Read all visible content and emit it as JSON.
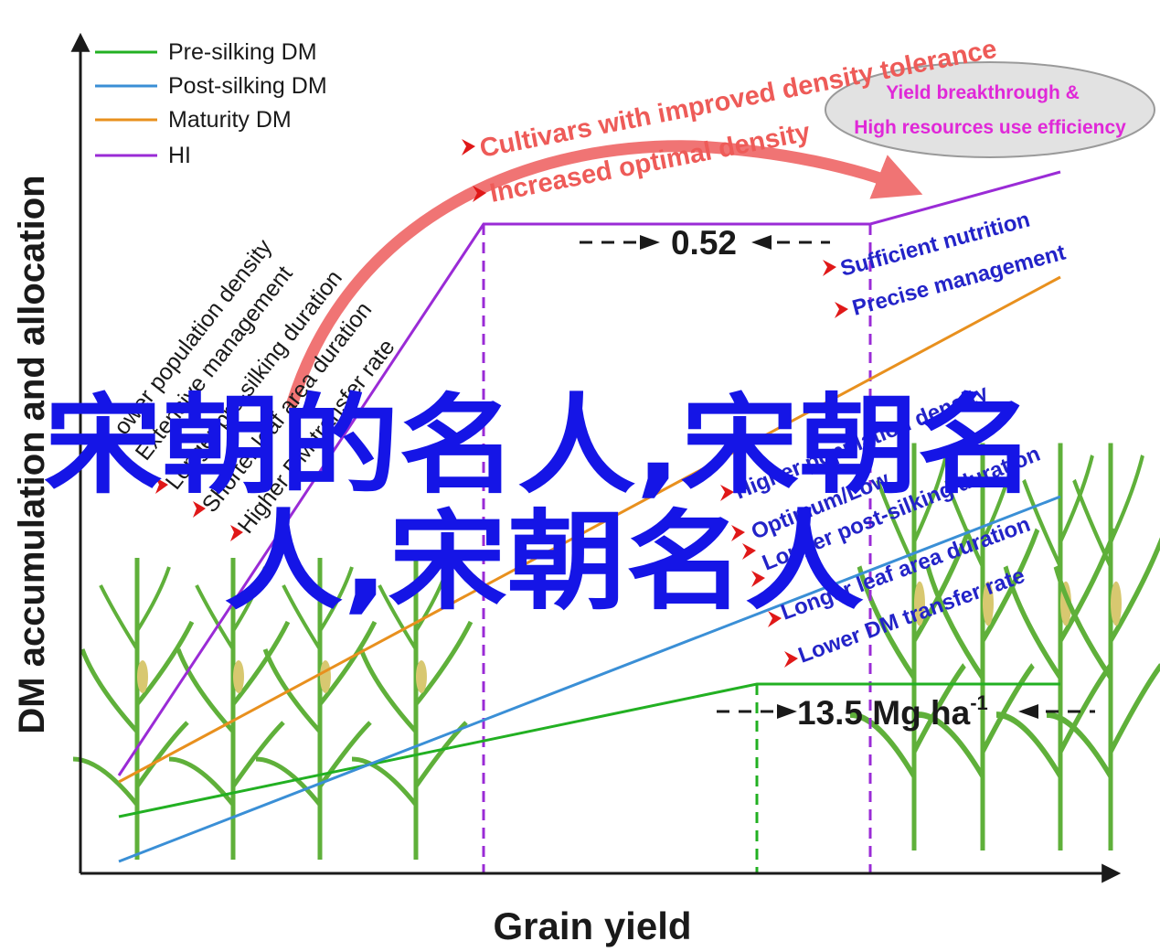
{
  "chart_data": {
    "type": "line",
    "xlabel": "Grain yield",
    "ylabel": "DM accumulation and allocation",
    "legend_position": "top-left",
    "series": [
      {
        "name": "Pre-silking DM",
        "color": "#22b022"
      },
      {
        "name": "Post-silking DM",
        "color": "#3a8fd6"
      },
      {
        "name": "Maturity DM",
        "color": "#e8901e"
      },
      {
        "name": "HI",
        "color": "#9a2bd6"
      }
    ],
    "value_labels": {
      "hi_plateau": "0.52",
      "yield_value": "13.5 Mg ha",
      "yield_unit_sup": "-1"
    },
    "low_yield_factors": [
      "Lower population density",
      "Extensive management",
      "Longer pre-silking duration",
      "Shorter leaf area duration",
      "Higher DM transfer rate"
    ],
    "middle_annotations": [
      "Cultivars with improved density tolerance",
      "Increased optimal density"
    ],
    "breakthrough_bubble": [
      "Yield breakthrough &",
      "High resources use efficiency"
    ],
    "high_yield_factors_top": [
      "Sufficient nutrition",
      "Precise management"
    ],
    "high_yield_factors_bottom": [
      "Higher population density",
      "Optimum/Low",
      "Longer post-silking duration",
      "Longer leaf area duration",
      "Lower DM transfer rate"
    ]
  },
  "overlay_text": {
    "line1": "宋朝的名人,宋朝名",
    "line2": "人,宋朝名人"
  },
  "colors": {
    "axis": "#1a1a1a",
    "red_annotation": "#ee5b58",
    "blue_annotation": "#2323c8",
    "magenta_annotation": "#e028d8",
    "overlay": "#1515e6",
    "bubble_fill": "#e2e2e2",
    "plant_green": "#5fb03a"
  }
}
